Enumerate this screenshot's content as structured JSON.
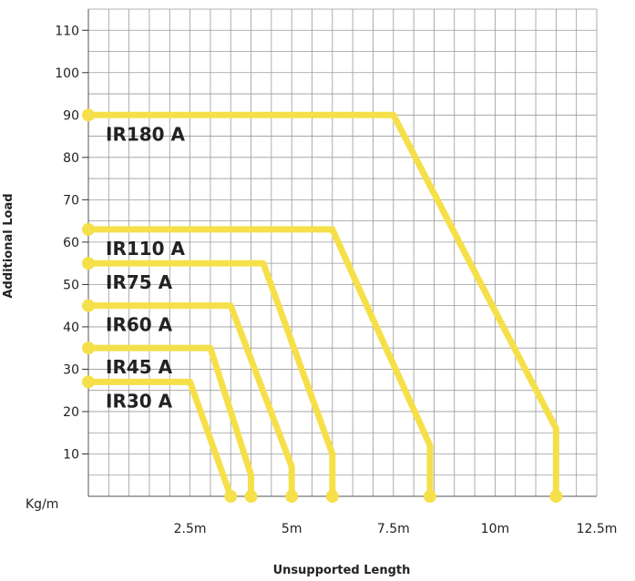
{
  "chart_data": {
    "type": "line",
    "title": "",
    "xlabel": "Unsupported Length",
    "ylabel": "Additional Load",
    "y_unit_label": "Kg/m",
    "xlim": [
      0,
      12.5
    ],
    "ylim": [
      0,
      115
    ],
    "x_ticks": [
      {
        "value": 2.5,
        "label": "2.5m"
      },
      {
        "value": 5,
        "label": "5m"
      },
      {
        "value": 7.5,
        "label": "7.5m"
      },
      {
        "value": 10,
        "label": "10m"
      },
      {
        "value": 12.5,
        "label": "12.5m"
      }
    ],
    "y_ticks": [
      {
        "value": 10,
        "label": "10"
      },
      {
        "value": 20,
        "label": "20"
      },
      {
        "value": 30,
        "label": "30"
      },
      {
        "value": 40,
        "label": "40"
      },
      {
        "value": 50,
        "label": "50"
      },
      {
        "value": 60,
        "label": "60"
      },
      {
        "value": 70,
        "label": "70"
      },
      {
        "value": 80,
        "label": "80"
      },
      {
        "value": 90,
        "label": "90"
      },
      {
        "value": 100,
        "label": "100"
      },
      {
        "value": 110,
        "label": "110"
      }
    ],
    "grid": true,
    "line_color": "#f5e04a",
    "series": [
      {
        "name": "IR180 A",
        "points": [
          [
            0,
            90
          ],
          [
            7.5,
            90
          ],
          [
            11.5,
            16
          ],
          [
            11.5,
            0
          ]
        ]
      },
      {
        "name": "IR110 A",
        "points": [
          [
            0,
            63
          ],
          [
            6,
            63
          ],
          [
            8.4,
            12
          ],
          [
            8.4,
            0
          ]
        ]
      },
      {
        "name": "IR75 A",
        "points": [
          [
            0,
            55
          ],
          [
            4.3,
            55
          ],
          [
            6,
            10
          ],
          [
            6,
            0
          ]
        ]
      },
      {
        "name": "IR60 A",
        "points": [
          [
            0,
            45
          ],
          [
            3.5,
            45
          ],
          [
            5,
            7
          ],
          [
            5,
            0
          ]
        ]
      },
      {
        "name": "IR45 A",
        "points": [
          [
            0,
            35
          ],
          [
            3,
            35
          ],
          [
            4,
            5
          ],
          [
            4,
            0
          ]
        ]
      },
      {
        "name": "IR30 A",
        "points": [
          [
            0,
            27
          ],
          [
            2.5,
            27
          ],
          [
            3.5,
            0
          ]
        ]
      }
    ]
  }
}
